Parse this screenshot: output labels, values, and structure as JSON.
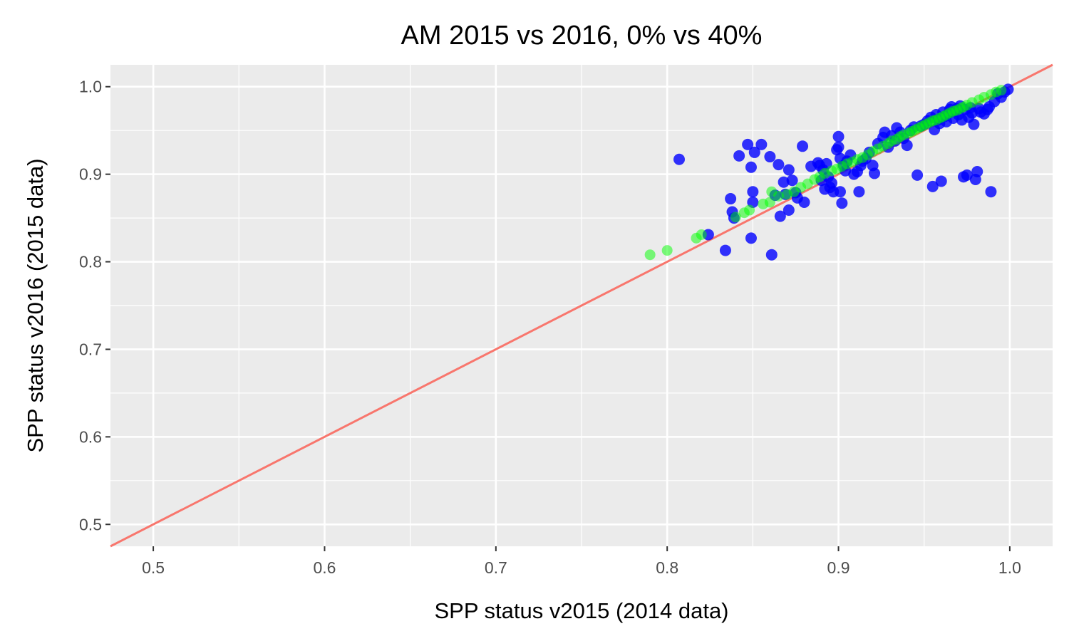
{
  "chart_data": {
    "type": "scatter",
    "title": "AM 2015 vs 2016, 0% vs 40%",
    "xlabel": "SPP status v2015 (2014 data)",
    "ylabel": "SPP status v2016 (2015 data)",
    "xlim": [
      0.475,
      1.025
    ],
    "ylim": [
      0.475,
      1.025
    ],
    "xticks": [
      "0.5",
      "0.6",
      "0.7",
      "0.8",
      "0.9",
      "1.0"
    ],
    "yticks": [
      "0.5",
      "0.6",
      "0.7",
      "0.8",
      "0.9",
      "1.0"
    ],
    "grid": true,
    "reference_line": {
      "slope": 1,
      "intercept": 0,
      "color": "#f8766d"
    },
    "colors": {
      "panel": "#ebebeb",
      "grid": "#ffffff",
      "series_blue": "#0000ff",
      "series_green": "#00ff00"
    },
    "series": [
      {
        "color": "#0000ff",
        "points": [
          [
            0.807,
            0.917
          ],
          [
            0.824,
            0.831
          ],
          [
            0.834,
            0.813
          ],
          [
            0.837,
            0.872
          ],
          [
            0.838,
            0.857
          ],
          [
            0.839,
            0.85
          ],
          [
            0.842,
            0.921
          ],
          [
            0.847,
            0.934
          ],
          [
            0.849,
            0.908
          ],
          [
            0.849,
            0.827
          ],
          [
            0.85,
            0.88
          ],
          [
            0.85,
            0.868
          ],
          [
            0.851,
            0.925
          ],
          [
            0.855,
            0.934
          ],
          [
            0.86,
            0.92
          ],
          [
            0.861,
            0.808
          ],
          [
            0.863,
            0.876
          ],
          [
            0.865,
            0.911
          ],
          [
            0.866,
            0.852
          ],
          [
            0.868,
            0.891
          ],
          [
            0.869,
            0.877
          ],
          [
            0.871,
            0.905
          ],
          [
            0.871,
            0.859
          ],
          [
            0.873,
            0.893
          ],
          [
            0.875,
            0.879
          ],
          [
            0.876,
            0.873
          ],
          [
            0.879,
            0.932
          ],
          [
            0.88,
            0.868
          ],
          [
            0.884,
            0.909
          ],
          [
            0.888,
            0.913
          ],
          [
            0.889,
            0.91
          ],
          [
            0.89,
            0.893
          ],
          [
            0.891,
            0.905
          ],
          [
            0.892,
            0.883
          ],
          [
            0.893,
            0.912
          ],
          [
            0.894,
            0.897
          ],
          [
            0.895,
            0.885
          ],
          [
            0.896,
            0.89
          ],
          [
            0.897,
            0.88
          ],
          [
            0.899,
            0.928
          ],
          [
            0.9,
            0.931
          ],
          [
            0.9,
            0.943
          ],
          [
            0.901,
            0.918
          ],
          [
            0.901,
            0.88
          ],
          [
            0.902,
            0.867
          ],
          [
            0.903,
            0.91
          ],
          [
            0.904,
            0.904
          ],
          [
            0.905,
            0.915
          ],
          [
            0.907,
            0.922
          ],
          [
            0.909,
            0.9
          ],
          [
            0.911,
            0.903
          ],
          [
            0.912,
            0.88
          ],
          [
            0.913,
            0.91
          ],
          [
            0.914,
            0.915
          ],
          [
            0.916,
            0.918
          ],
          [
            0.918,
            0.925
          ],
          [
            0.92,
            0.91
          ],
          [
            0.921,
            0.901
          ],
          [
            0.923,
            0.935
          ],
          [
            0.926,
            0.942
          ],
          [
            0.927,
            0.948
          ],
          [
            0.929,
            0.931
          ],
          [
            0.931,
            0.944
          ],
          [
            0.933,
            0.938
          ],
          [
            0.934,
            0.953
          ],
          [
            0.936,
            0.948
          ],
          [
            0.938,
            0.941
          ],
          [
            0.94,
            0.933
          ],
          [
            0.942,
            0.95
          ],
          [
            0.944,
            0.954
          ],
          [
            0.946,
            0.899
          ],
          [
            0.948,
            0.955
          ],
          [
            0.95,
            0.957
          ],
          [
            0.952,
            0.961
          ],
          [
            0.954,
            0.965
          ],
          [
            0.955,
            0.886
          ],
          [
            0.956,
            0.951
          ],
          [
            0.957,
            0.968
          ],
          [
            0.958,
            0.962
          ],
          [
            0.959,
            0.958
          ],
          [
            0.96,
            0.892
          ],
          [
            0.961,
            0.971
          ],
          [
            0.962,
            0.966
          ],
          [
            0.963,
            0.96
          ],
          [
            0.964,
            0.969
          ],
          [
            0.965,
            0.974
          ],
          [
            0.966,
            0.977
          ],
          [
            0.967,
            0.964
          ],
          [
            0.968,
            0.972
          ],
          [
            0.969,
            0.975
          ],
          [
            0.97,
            0.968
          ],
          [
            0.971,
            0.978
          ],
          [
            0.972,
            0.962
          ],
          [
            0.973,
            0.897
          ],
          [
            0.974,
            0.974
          ],
          [
            0.975,
            0.899
          ],
          [
            0.976,
            0.965
          ],
          [
            0.977,
            0.976
          ],
          [
            0.978,
            0.97
          ],
          [
            0.979,
            0.957
          ],
          [
            0.98,
            0.894
          ],
          [
            0.981,
            0.903
          ],
          [
            0.982,
            0.975
          ],
          [
            0.983,
            0.971
          ],
          [
            0.985,
            0.969
          ],
          [
            0.987,
            0.974
          ],
          [
            0.988,
            0.977
          ],
          [
            0.989,
            0.88
          ],
          [
            0.991,
            0.983
          ],
          [
            0.993,
            0.992
          ],
          [
            0.995,
            0.988
          ],
          [
            0.997,
            0.994
          ],
          [
            0.999,
            0.997
          ]
        ]
      },
      {
        "color": "#00ff00",
        "points": [
          [
            0.79,
            0.808
          ],
          [
            0.8,
            0.813
          ],
          [
            0.817,
            0.827
          ],
          [
            0.82,
            0.831
          ],
          [
            0.84,
            0.851
          ],
          [
            0.845,
            0.856
          ],
          [
            0.848,
            0.859
          ],
          [
            0.856,
            0.866
          ],
          [
            0.86,
            0.868
          ],
          [
            0.861,
            0.88
          ],
          [
            0.865,
            0.875
          ],
          [
            0.87,
            0.877
          ],
          [
            0.874,
            0.88
          ],
          [
            0.878,
            0.885
          ],
          [
            0.882,
            0.889
          ],
          [
            0.886,
            0.894
          ],
          [
            0.889,
            0.897
          ],
          [
            0.892,
            0.901
          ],
          [
            0.896,
            0.904
          ],
          [
            0.899,
            0.906
          ],
          [
            0.902,
            0.909
          ],
          [
            0.905,
            0.912
          ],
          [
            0.908,
            0.914
          ],
          [
            0.911,
            0.917
          ],
          [
            0.914,
            0.919
          ],
          [
            0.917,
            0.922
          ],
          [
            0.92,
            0.926
          ],
          [
            0.923,
            0.929
          ],
          [
            0.926,
            0.932
          ],
          [
            0.929,
            0.935
          ],
          [
            0.931,
            0.938
          ],
          [
            0.934,
            0.94
          ],
          [
            0.936,
            0.943
          ],
          [
            0.938,
            0.945
          ],
          [
            0.941,
            0.947
          ],
          [
            0.943,
            0.949
          ],
          [
            0.945,
            0.951
          ],
          [
            0.947,
            0.953
          ],
          [
            0.949,
            0.955
          ],
          [
            0.951,
            0.957
          ],
          [
            0.953,
            0.959
          ],
          [
            0.955,
            0.961
          ],
          [
            0.957,
            0.962
          ],
          [
            0.959,
            0.964
          ],
          [
            0.961,
            0.966
          ],
          [
            0.963,
            0.968
          ],
          [
            0.965,
            0.97
          ],
          [
            0.967,
            0.972
          ],
          [
            0.969,
            0.973
          ],
          [
            0.971,
            0.975
          ],
          [
            0.973,
            0.977
          ],
          [
            0.975,
            0.979
          ],
          [
            0.978,
            0.982
          ],
          [
            0.982,
            0.985
          ],
          [
            0.985,
            0.988
          ],
          [
            0.989,
            0.991
          ],
          [
            0.992,
            0.994
          ],
          [
            0.995,
            0.996
          ]
        ]
      }
    ]
  }
}
